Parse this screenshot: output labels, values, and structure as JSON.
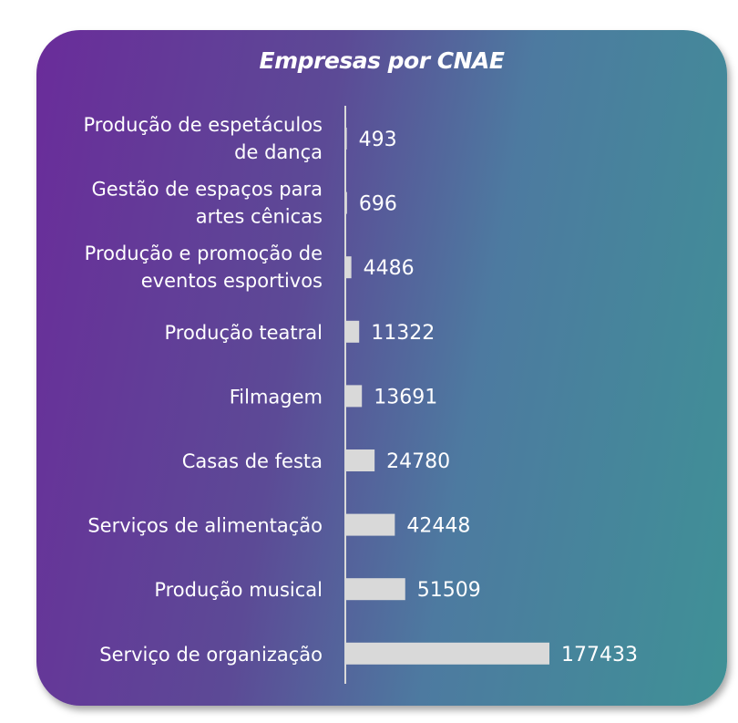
{
  "chart_data": {
    "type": "bar",
    "orientation": "horizontal",
    "title": "Empresas por CNAE",
    "categories": [
      [
        "Produção de espetáculos",
        "de dança"
      ],
      [
        "Gestão de espaços para",
        "artes cênicas"
      ],
      [
        "Produção e promoção de",
        "eventos esportivos"
      ],
      [
        "Produção teatral"
      ],
      [
        "Filmagem"
      ],
      [
        "Casas de festa"
      ],
      [
        "Serviços de alimentação"
      ],
      [
        "Produção musical"
      ],
      [
        "Serviço de organização"
      ]
    ],
    "values": [
      493,
      696,
      4486,
      11322,
      13691,
      24780,
      42448,
      51509,
      177433
    ],
    "data_labels": [
      "493",
      "696",
      "4486",
      "11322",
      "13691",
      "24780",
      "42448",
      "51509",
      "177433"
    ],
    "xlim": [
      0,
      177433
    ],
    "grid": false,
    "legend": "none",
    "colors": {
      "bar": "#d9d9d9",
      "axis": "#d9d9d9",
      "text": "#ffffff"
    }
  }
}
